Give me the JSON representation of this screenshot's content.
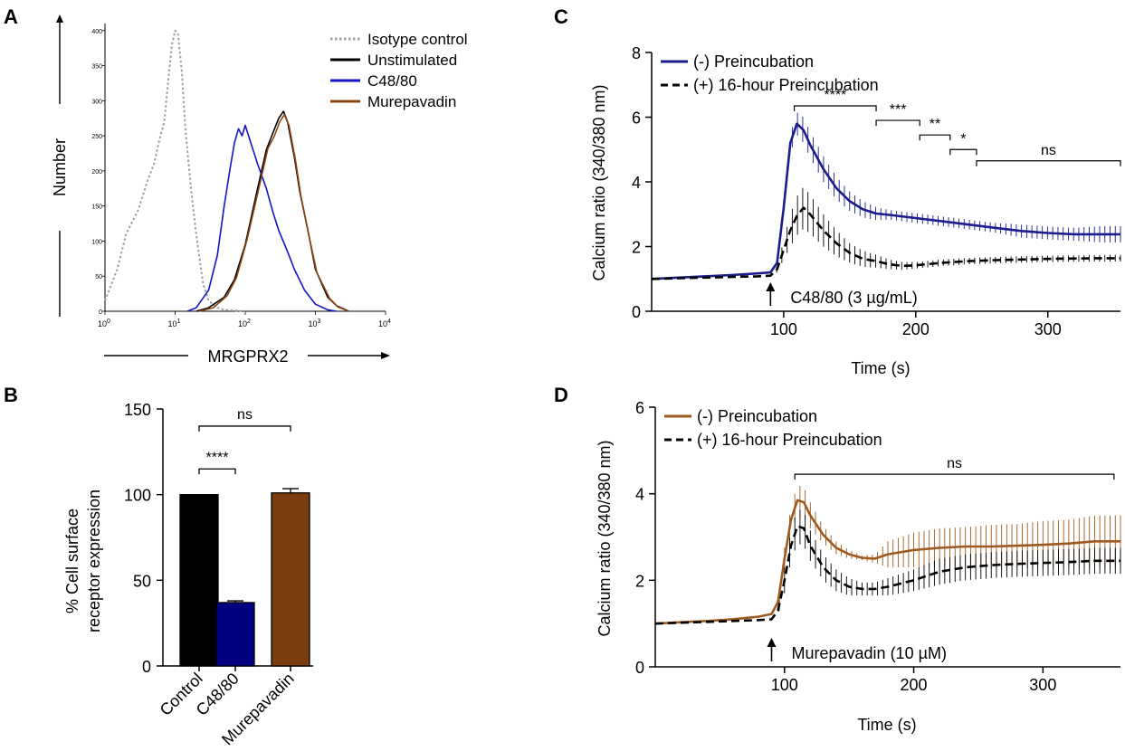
{
  "chart_data": [
    {
      "panel": "A",
      "type": "line",
      "title": "",
      "xlabel": "MRGPRX2",
      "ylabel": "Number",
      "xscale": "log",
      "xlim": [
        1,
        10000
      ],
      "ylim": [
        0,
        410
      ],
      "xticks": [
        {
          "value": 1,
          "base": "10",
          "exp": "0"
        },
        {
          "value": 10,
          "base": "10",
          "exp": "1"
        },
        {
          "value": 100,
          "base": "10",
          "exp": "2"
        },
        {
          "value": 1000,
          "base": "10",
          "exp": "3"
        },
        {
          "value": 10000,
          "base": "10",
          "exp": "4"
        }
      ],
      "yticks": [
        0,
        50,
        100,
        150,
        200,
        250,
        300,
        350,
        400
      ],
      "legend_position": "top-right",
      "series": [
        {
          "name": "Isotype control",
          "color": "#a0a0a0",
          "dash": "dotted",
          "x": [
            1.0,
            1.5,
            2.0,
            3.0,
            4.0,
            5.0,
            6.0,
            7.0,
            8.0,
            9.0,
            10.0,
            11.0,
            12.5,
            14.0,
            17.0,
            20.0,
            25.0,
            30.0,
            40.0,
            50.0,
            70.0,
            100.0
          ],
          "y": [
            15,
            60,
            110,
            145,
            185,
            210,
            245,
            270,
            330,
            380,
            400,
            395,
            340,
            260,
            170,
            110,
            40,
            15,
            5,
            2,
            1,
            0
          ]
        },
        {
          "name": "Unstimulated",
          "color": "#000000",
          "dash": "solid",
          "x": [
            20,
            30,
            50,
            70,
            100,
            150,
            200,
            250,
            300,
            350,
            400,
            500,
            600,
            800,
            1000,
            1500,
            2000,
            3000
          ],
          "y": [
            0,
            5,
            20,
            45,
            95,
            175,
            230,
            255,
            275,
            285,
            270,
            220,
            170,
            110,
            60,
            20,
            8,
            0
          ]
        },
        {
          "name": "C48/80",
          "color": "#1414c8",
          "dash": "solid",
          "x": [
            15,
            20,
            30,
            40,
            50,
            60,
            70,
            80,
            90,
            100,
            120,
            150,
            200,
            250,
            300,
            400,
            500,
            700,
            1000,
            1500,
            2000
          ],
          "y": [
            0,
            5,
            30,
            80,
            150,
            200,
            240,
            260,
            250,
            265,
            240,
            210,
            175,
            140,
            115,
            85,
            60,
            30,
            10,
            2,
            0
          ]
        },
        {
          "name": "Murepavadin",
          "color": "#8b4513",
          "dash": "solid",
          "x": [
            22,
            35,
            55,
            75,
            105,
            160,
            210,
            260,
            310,
            360,
            420,
            520,
            620,
            820,
            1050,
            1600,
            2100,
            3000
          ],
          "y": [
            0,
            5,
            22,
            48,
            100,
            180,
            232,
            250,
            270,
            280,
            265,
            215,
            165,
            105,
            55,
            18,
            6,
            0
          ]
        }
      ]
    },
    {
      "panel": "B",
      "type": "bar",
      "title": "",
      "xlabel": "",
      "ylabel_lines": [
        "% Cell surface",
        "receptor expression"
      ],
      "categories": [
        "Control",
        "C48/80",
        "Murepavadin"
      ],
      "values": [
        100,
        37,
        101
      ],
      "errors": [
        0,
        1,
        2.5
      ],
      "colors": [
        "#000000",
        "#000080",
        "#7b3c0f"
      ],
      "ylim": [
        0,
        150
      ],
      "yticks": [
        0,
        50,
        100,
        150
      ],
      "significance": [
        {
          "from": 0,
          "to": 1,
          "label": "****",
          "y": 115
        },
        {
          "from": 0,
          "to": 2,
          "label": "ns",
          "y": 140
        }
      ]
    },
    {
      "panel": "C",
      "type": "line",
      "title": "",
      "xlabel": "Time (s)",
      "ylabel": "Calcium ratio (340/380 nm)",
      "xlim": [
        0,
        355
      ],
      "ylim": [
        0,
        8
      ],
      "xticks": [
        100,
        200,
        300
      ],
      "yticks": [
        0,
        2,
        4,
        6,
        8
      ],
      "legend_position": "top-left",
      "annotation": {
        "text": "C48/80 (3 µg/mL)",
        "x": 90,
        "y": 0.8
      },
      "significance": [
        {
          "x1": 108,
          "x2": 170,
          "y": 6.35,
          "label": "****"
        },
        {
          "x1": 170,
          "x2": 203,
          "y": 5.9,
          "label": "***"
        },
        {
          "x1": 203,
          "x2": 226,
          "y": 5.45,
          "label": "**"
        },
        {
          "x1": 226,
          "x2": 246,
          "y": 5.0,
          "label": "*"
        },
        {
          "x1": 246,
          "x2": 355,
          "y": 4.65,
          "label": "ns"
        }
      ],
      "series": [
        {
          "name": "(-) Preincubation",
          "color": "#1c1c8c",
          "dash": "solid",
          "x": [
            0,
            20,
            40,
            60,
            80,
            90,
            95,
            100,
            105,
            110,
            115,
            120,
            130,
            140,
            150,
            160,
            170,
            180,
            200,
            220,
            240,
            260,
            280,
            300,
            320,
            340,
            355
          ],
          "y": [
            1.0,
            1.04,
            1.08,
            1.12,
            1.17,
            1.2,
            1.5,
            3.2,
            5.2,
            5.8,
            5.6,
            5.15,
            4.4,
            3.8,
            3.4,
            3.15,
            3.02,
            2.98,
            2.88,
            2.78,
            2.68,
            2.58,
            2.48,
            2.42,
            2.38,
            2.38,
            2.38
          ],
          "err": [
            0,
            0,
            0,
            0,
            0,
            0,
            0.05,
            0.2,
            0.3,
            0.35,
            0.4,
            0.4,
            0.4,
            0.35,
            0.3,
            0.25,
            0.2,
            0.15,
            0.15,
            0.15,
            0.15,
            0.15,
            0.2,
            0.2,
            0.2,
            0.25,
            0.25
          ]
        },
        {
          "name": "(+) 16-hour Preincubation",
          "color": "#000000",
          "dash": "dashed",
          "x": [
            0,
            20,
            40,
            60,
            80,
            90,
            95,
            100,
            105,
            110,
            115,
            120,
            130,
            140,
            150,
            160,
            170,
            180,
            190,
            200,
            220,
            240,
            260,
            280,
            300,
            320,
            340,
            355
          ],
          "y": [
            1.0,
            1.02,
            1.04,
            1.06,
            1.08,
            1.1,
            1.3,
            1.9,
            2.5,
            2.95,
            3.2,
            3.0,
            2.5,
            2.1,
            1.8,
            1.62,
            1.55,
            1.45,
            1.4,
            1.42,
            1.5,
            1.55,
            1.58,
            1.6,
            1.62,
            1.63,
            1.64,
            1.64
          ],
          "err": [
            0,
            0,
            0,
            0,
            0,
            0,
            0.1,
            0.3,
            0.5,
            0.6,
            0.65,
            0.6,
            0.5,
            0.4,
            0.3,
            0.25,
            0.2,
            0.15,
            0.12,
            0.1,
            0.1,
            0.1,
            0.1,
            0.1,
            0.1,
            0.1,
            0.1,
            0.1
          ]
        }
      ]
    },
    {
      "panel": "D",
      "type": "line",
      "title": "",
      "xlabel": "Time (s)",
      "ylabel": "Calcium ratio (340/380 nm)",
      "xlim": [
        0,
        360
      ],
      "ylim": [
        0,
        6
      ],
      "xticks": [
        100,
        200,
        300
      ],
      "yticks": [
        0,
        2,
        4,
        6
      ],
      "legend_position": "top-left",
      "annotation": {
        "text": "Murepavadin (10 µM)",
        "x": 90,
        "y": 0.6
      },
      "significance": [
        {
          "x1": 108,
          "x2": 355,
          "y": 4.45,
          "label": "ns"
        }
      ],
      "series": [
        {
          "name": "(-) Preincubation",
          "color": "#9e5a1e",
          "dash": "solid",
          "x": [
            0,
            20,
            40,
            60,
            80,
            90,
            95,
            100,
            105,
            110,
            115,
            120,
            130,
            140,
            150,
            160,
            170,
            180,
            200,
            220,
            240,
            260,
            280,
            300,
            320,
            340,
            360
          ],
          "y": [
            1.0,
            1.03,
            1.06,
            1.1,
            1.16,
            1.22,
            1.5,
            2.5,
            3.4,
            3.85,
            3.8,
            3.5,
            3.05,
            2.75,
            2.6,
            2.52,
            2.5,
            2.6,
            2.7,
            2.75,
            2.78,
            2.78,
            2.8,
            2.82,
            2.85,
            2.9,
            2.9
          ],
          "err": [
            0,
            0,
            0,
            0,
            0,
            0,
            0.1,
            0.25,
            0.3,
            0.35,
            0.35,
            0.3,
            0.2,
            0.15,
            0.1,
            0.05,
            0.1,
            0.3,
            0.4,
            0.45,
            0.45,
            0.5,
            0.5,
            0.55,
            0.55,
            0.6,
            0.6
          ]
        },
        {
          "name": "(+) 16-hour Preincubation",
          "color": "#000000",
          "dash": "dashed",
          "x": [
            0,
            20,
            40,
            60,
            80,
            90,
            95,
            100,
            105,
            110,
            115,
            120,
            130,
            140,
            150,
            160,
            170,
            180,
            200,
            220,
            240,
            260,
            280,
            300,
            320,
            340,
            360
          ],
          "y": [
            1.0,
            1.02,
            1.04,
            1.06,
            1.08,
            1.1,
            1.3,
            2.0,
            2.8,
            3.25,
            3.2,
            2.8,
            2.3,
            2.0,
            1.85,
            1.8,
            1.8,
            1.85,
            2.0,
            2.2,
            2.3,
            2.35,
            2.38,
            2.4,
            2.42,
            2.45,
            2.45
          ],
          "err": [
            0,
            0,
            0,
            0,
            0,
            0,
            0.1,
            0.3,
            0.35,
            0.4,
            0.4,
            0.35,
            0.3,
            0.25,
            0.2,
            0.15,
            0.15,
            0.2,
            0.25,
            0.3,
            0.3,
            0.3,
            0.3,
            0.3,
            0.3,
            0.3,
            0.3
          ]
        }
      ]
    }
  ],
  "panel_labels": [
    "A",
    "B",
    "C",
    "D"
  ]
}
